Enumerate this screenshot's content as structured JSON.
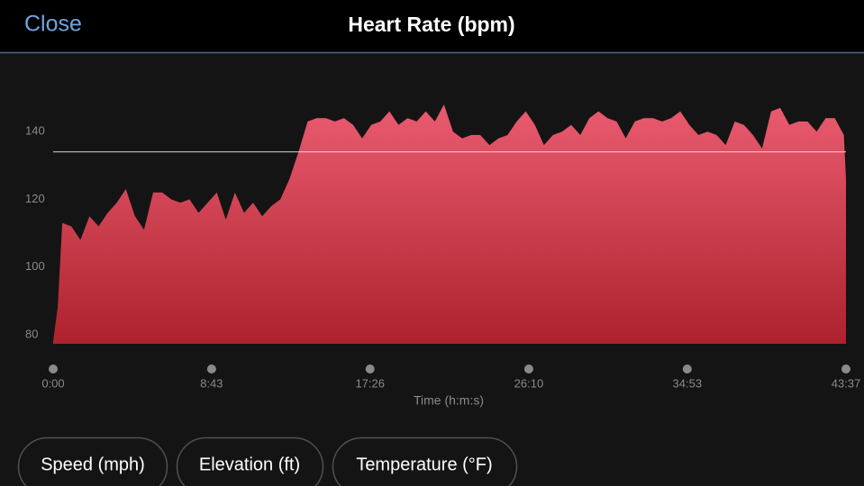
{
  "header": {
    "close": "Close",
    "title": "Heart Rate (bpm)"
  },
  "chart_data": {
    "type": "area",
    "x": [
      0,
      15,
      30,
      60,
      90,
      120,
      150,
      180,
      210,
      240,
      270,
      300,
      330,
      360,
      390,
      420,
      450,
      480,
      510,
      540,
      570,
      600,
      630,
      660,
      690,
      720,
      750,
      780,
      810,
      840,
      870,
      900,
      930,
      960,
      990,
      1020,
      1050,
      1080,
      1110,
      1140,
      1170,
      1200,
      1230,
      1260,
      1290,
      1320,
      1350,
      1380,
      1410,
      1440,
      1470,
      1500,
      1530,
      1560,
      1590,
      1620,
      1650,
      1680,
      1710,
      1740,
      1770,
      1800,
      1830,
      1860,
      1890,
      1920,
      1950,
      1980,
      2010,
      2040,
      2070,
      2100,
      2130,
      2160,
      2190,
      2220,
      2250,
      2280,
      2310,
      2340,
      2370,
      2400,
      2430,
      2460,
      2490,
      2520,
      2550,
      2580,
      2610,
      2617
    ],
    "values": [
      78,
      88,
      113,
      112,
      108,
      115,
      112,
      116,
      119,
      123,
      115,
      111,
      122,
      122,
      120,
      119,
      120,
      116,
      119,
      122,
      114,
      122,
      116,
      119,
      115,
      118,
      120,
      126,
      134,
      143,
      144,
      144,
      143,
      144,
      142,
      138,
      142,
      143,
      146,
      142,
      144,
      143,
      146,
      143,
      148,
      140,
      138,
      139,
      139,
      136,
      138,
      139,
      143,
      146,
      142,
      136,
      139,
      140,
      142,
      139,
      144,
      146,
      144,
      143,
      138,
      143,
      144,
      144,
      143,
      144,
      146,
      142,
      139,
      140,
      139,
      136,
      143,
      142,
      139,
      135,
      146,
      147,
      142,
      143,
      143,
      140,
      144,
      144,
      139,
      126
    ],
    "color_top": "#ea5b70",
    "color_bottom": "#ad222d",
    "reference_line": 134,
    "xlim": [
      0,
      2617
    ],
    "xticks": [
      {
        "value": 0,
        "label": "0:00"
      },
      {
        "value": 523,
        "label": "8:43"
      },
      {
        "value": 1046,
        "label": "17:26"
      },
      {
        "value": 1570,
        "label": "26:10"
      },
      {
        "value": 2093,
        "label": "34:53"
      },
      {
        "value": 2617,
        "label": "43:37"
      }
    ],
    "ylim": [
      77.3,
      156
    ],
    "yticks": [
      80,
      100,
      120,
      140
    ],
    "x_label": "Time (h:m:s)"
  },
  "buttons": [
    "Speed (mph)",
    "Elevation (ft)",
    "Temperature (°F)"
  ]
}
